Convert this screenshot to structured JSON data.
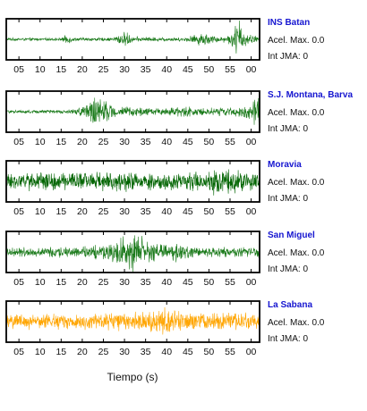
{
  "chart_data": [
    {
      "type": "line",
      "station": "INS Batan",
      "info": [
        "Acel. Max. 0.0",
        "Int JMA: 0"
      ],
      "color": "#1a7a1a",
      "x_ticks": [
        5,
        10,
        15,
        20,
        25,
        30,
        35,
        40,
        45,
        50,
        55,
        60
      ],
      "tick_labels": [
        "05",
        "10",
        "15",
        "20",
        "25",
        "30",
        "35",
        "40",
        "45",
        "50",
        "55",
        "00"
      ],
      "xlim": [
        2,
        62
      ],
      "envelope": [
        [
          2,
          0.08
        ],
        [
          15,
          0.08
        ],
        [
          16.5,
          0.3
        ],
        [
          18,
          0.1
        ],
        [
          27,
          0.1
        ],
        [
          29,
          0.35
        ],
        [
          30.5,
          0.45
        ],
        [
          32,
          0.15
        ],
        [
          44,
          0.1
        ],
        [
          46,
          0.25
        ],
        [
          49,
          0.4
        ],
        [
          51,
          0.2
        ],
        [
          54,
          0.18
        ],
        [
          55.5,
          0.4
        ],
        [
          56.5,
          1.0
        ],
        [
          57.3,
          1.3
        ],
        [
          58.2,
          0.5
        ],
        [
          60,
          0.25
        ],
        [
          62,
          0.2
        ]
      ]
    },
    {
      "type": "line",
      "station": "S.J. Montana, Barva",
      "info": [
        "Acel. Max. 0.0",
        "Int JMA: 0"
      ],
      "color": "#1a7a1a",
      "x_ticks": [
        5,
        10,
        15,
        20,
        25,
        30,
        35,
        40,
        45,
        50,
        55,
        60
      ],
      "tick_labels": [
        "05",
        "10",
        "15",
        "20",
        "25",
        "30",
        "35",
        "40",
        "45",
        "50",
        "55",
        "00"
      ],
      "xlim": [
        2,
        62
      ],
      "envelope": [
        [
          2,
          0.1
        ],
        [
          18,
          0.12
        ],
        [
          20,
          0.35
        ],
        [
          22,
          0.65
        ],
        [
          24,
          0.9
        ],
        [
          26,
          0.55
        ],
        [
          28,
          0.3
        ],
        [
          34,
          0.25
        ],
        [
          38,
          0.2
        ],
        [
          45,
          0.35
        ],
        [
          48,
          0.2
        ],
        [
          55,
          0.25
        ],
        [
          58,
          0.3
        ],
        [
          60.5,
          0.55
        ],
        [
          61.5,
          1.3
        ],
        [
          62,
          0.7
        ]
      ]
    },
    {
      "type": "line",
      "station": "Moravia",
      "info": [
        "Acel. Max. 0.0",
        "Int JMA: 0"
      ],
      "color": "#006400",
      "x_ticks": [
        5,
        10,
        15,
        20,
        25,
        30,
        35,
        40,
        45,
        50,
        55,
        60
      ],
      "tick_labels": [
        "05",
        "10",
        "15",
        "20",
        "25",
        "30",
        "35",
        "40",
        "45",
        "50",
        "55",
        "00"
      ],
      "xlim": [
        2,
        62
      ],
      "envelope": [
        [
          2,
          0.45
        ],
        [
          10,
          0.55
        ],
        [
          17,
          0.5
        ],
        [
          22,
          0.55
        ],
        [
          28,
          0.6
        ],
        [
          33,
          0.5
        ],
        [
          40,
          0.55
        ],
        [
          47,
          0.55
        ],
        [
          50,
          0.6
        ],
        [
          52,
          0.85
        ],
        [
          54,
          1.0
        ],
        [
          56,
          0.7
        ],
        [
          58,
          0.55
        ],
        [
          62,
          0.45
        ]
      ]
    },
    {
      "type": "line",
      "station": "San Miguel",
      "info": [
        "Acel. Max. 0.0",
        "Int JMA: 0"
      ],
      "color": "#1a7a1a",
      "x_ticks": [
        5,
        10,
        15,
        20,
        25,
        30,
        35,
        40,
        45,
        50,
        55,
        60
      ],
      "tick_labels": [
        "05",
        "10",
        "15",
        "20",
        "25",
        "30",
        "35",
        "40",
        "45",
        "50",
        "55",
        "00"
      ],
      "xlim": [
        2,
        62
      ],
      "envelope": [
        [
          2,
          0.25
        ],
        [
          10,
          0.3
        ],
        [
          18,
          0.3
        ],
        [
          22,
          0.4
        ],
        [
          26,
          0.5
        ],
        [
          28,
          0.75
        ],
        [
          30,
          1.0
        ],
        [
          32,
          1.1
        ],
        [
          34,
          0.95
        ],
        [
          35.5,
          0.75
        ],
        [
          37,
          0.5
        ],
        [
          40,
          0.4
        ],
        [
          42,
          0.55
        ],
        [
          44,
          0.45
        ],
        [
          47,
          0.3
        ],
        [
          55,
          0.28
        ],
        [
          62,
          0.3
        ]
      ]
    },
    {
      "type": "line",
      "station": "La Sabana",
      "info": [
        "Acel. Max. 0.0",
        "Int JMA: 0"
      ],
      "color": "#ffa500",
      "x_ticks": [
        5,
        10,
        15,
        20,
        25,
        30,
        35,
        40,
        45,
        50,
        55,
        60
      ],
      "tick_labels": [
        "05",
        "10",
        "15",
        "20",
        "25",
        "30",
        "35",
        "40",
        "45",
        "50",
        "55",
        "00"
      ],
      "xlim": [
        2,
        62
      ],
      "envelope": [
        [
          2,
          0.4
        ],
        [
          10,
          0.45
        ],
        [
          20,
          0.45
        ],
        [
          30,
          0.5
        ],
        [
          37,
          0.55
        ],
        [
          39,
          0.85
        ],
        [
          40,
          0.7
        ],
        [
          45,
          0.5
        ],
        [
          55,
          0.5
        ],
        [
          62,
          0.45
        ]
      ]
    }
  ],
  "xlabel": "Tiempo (s)"
}
